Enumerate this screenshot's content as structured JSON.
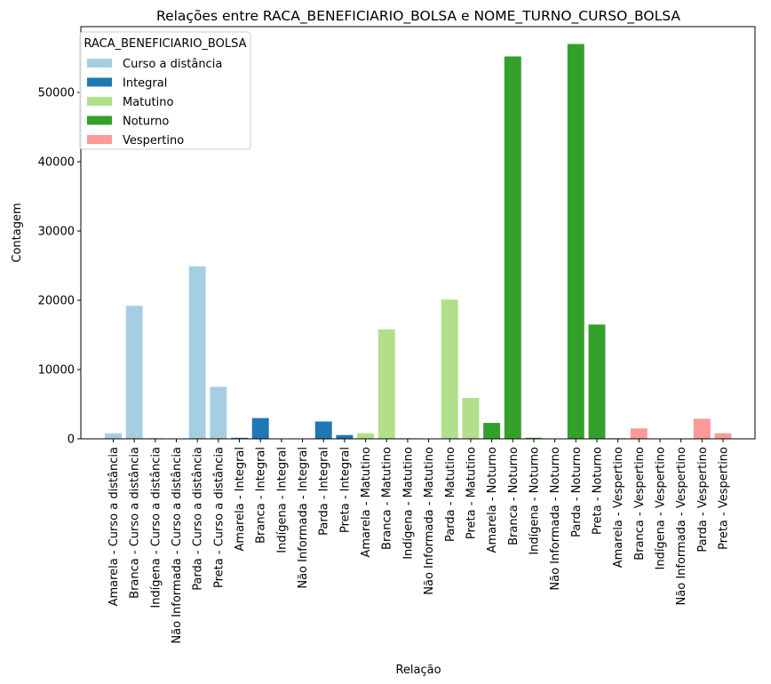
{
  "chart_data": {
    "type": "bar",
    "title": "Relações entre RACA_BENEFICIARIO_BOLSA e NOME_TURNO_CURSO_BOLSA",
    "xlabel": "Relação",
    "ylabel": "Contagem",
    "ylim": [
      0,
      59500
    ],
    "yticks": [
      0,
      10000,
      20000,
      30000,
      40000,
      50000
    ],
    "grid": false,
    "legend": {
      "title": "RACA_BENEFICIARIO_BOLSA",
      "placement": "top-left"
    },
    "series": [
      {
        "name": "Curso a distância",
        "color": "#a6cee3"
      },
      {
        "name": "Integral",
        "color": "#1f78b4"
      },
      {
        "name": "Matutino",
        "color": "#b2df8a"
      },
      {
        "name": "Noturno",
        "color": "#33a02c"
      },
      {
        "name": "Vespertino",
        "color": "#fb9a99"
      }
    ],
    "categories": [
      "Amarela - Curso a distância",
      "Branca - Curso a distância",
      "Indígena - Curso a distância",
      "Não Informada - Curso a distância",
      "Parda - Curso a distância",
      "Preta - Curso a distância",
      "Amarela - Integral",
      "Branca - Integral",
      "Indígena - Integral",
      "Não Informada - Integral",
      "Parda - Integral",
      "Preta - Integral",
      "Amarela - Matutino",
      "Branca - Matutino",
      "Indígena - Matutino",
      "Não Informada - Matutino",
      "Parda - Matutino",
      "Preta - Matutino",
      "Amarela - Noturno",
      "Branca - Noturno",
      "Indígena - Noturno",
      "Não Informada - Noturno",
      "Parda - Noturno",
      "Preta - Noturno",
      "Amarela - Vespertino",
      "Branca - Vespertino",
      "Indígena - Vespertino",
      "Não Informada - Vespertino",
      "Parda - Vespertino",
      "Preta - Vespertino"
    ],
    "bar_series": [
      0,
      0,
      0,
      0,
      0,
      0,
      1,
      1,
      1,
      1,
      1,
      1,
      2,
      2,
      2,
      2,
      2,
      2,
      3,
      3,
      3,
      3,
      3,
      3,
      4,
      4,
      4,
      4,
      4,
      4
    ],
    "values": [
      800,
      19200,
      100,
      30,
      24900,
      7500,
      150,
      3000,
      30,
      10,
      2500,
      550,
      800,
      15800,
      100,
      30,
      20100,
      5900,
      2300,
      55200,
      150,
      30,
      57000,
      16500,
      100,
      1500,
      20,
      10,
      2900,
      800
    ]
  }
}
